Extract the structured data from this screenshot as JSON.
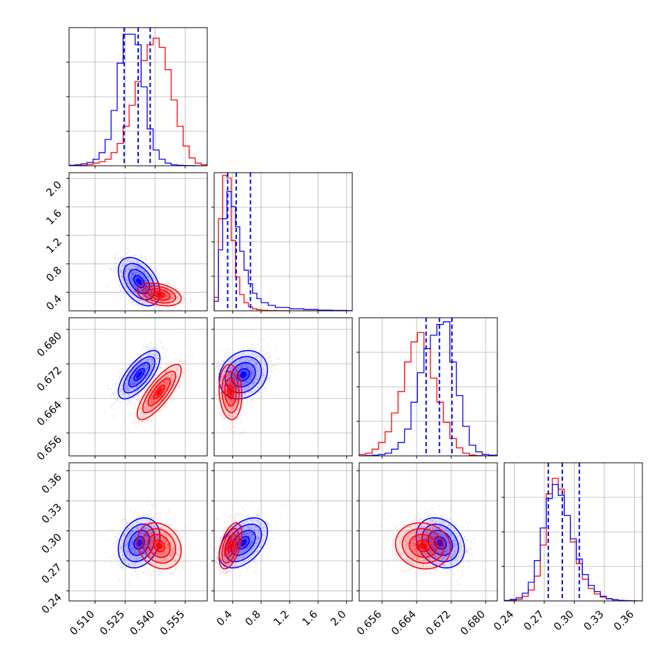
{
  "colors": {
    "sample_a": "#0000ff",
    "sample_b": "#ff0000"
  },
  "chart_data": {
    "type": "scatter",
    "subtype": "corner-plot",
    "grid": true,
    "legend": "none",
    "series_colors": [
      "#0000ff",
      "#ff0000"
    ],
    "parameters": [
      {
        "range": [
          0.497,
          0.566
        ],
        "ticks": [
          0.525,
          0.54,
          0.555,
          0.51
        ],
        "tick_labels": [
          "0.510",
          "0.525",
          "0.540",
          "0.555"
        ],
        "tick_values": [
          0.51,
          0.525,
          0.54,
          0.555
        ]
      },
      {
        "range": [
          0.14,
          2.08
        ],
        "ticks": [
          0.4,
          0.8,
          1.2,
          1.6,
          2.0
        ],
        "tick_labels": [
          "0.4",
          "0.8",
          "1.2",
          "1.6",
          "2.0"
        ],
        "tick_values": [
          0.4,
          0.8,
          1.2,
          1.6,
          2.0
        ]
      },
      {
        "range": [
          0.6507,
          0.6827
        ],
        "tick_labels": [
          "0.656",
          "0.664",
          "0.672",
          "0.680"
        ],
        "tick_values": [
          0.656,
          0.664,
          0.672,
          0.68
        ]
      },
      {
        "range": [
          0.23,
          0.368
        ],
        "tick_labels": [
          "0.24",
          "0.27",
          "0.30",
          "0.33",
          "0.36"
        ],
        "tick_values": [
          0.24,
          0.27,
          0.3,
          0.33,
          0.36
        ]
      }
    ],
    "series": [
      {
        "color": "#0000ff",
        "mean": [
          0.532,
          0.55,
          0.6695,
          0.288
        ],
        "std": [
          0.0052,
          0.17,
          0.0028,
          0.0125
        ],
        "quantiles": [
          [
            0.5245,
            0.5315,
            0.5375
          ],
          [
            0.33,
            0.45,
            0.65
          ],
          [
            0.6662,
            0.6693,
            0.6722
          ],
          [
            0.274,
            0.288,
            0.305
          ]
        ],
        "rho": [
          [
            1,
            -0.45,
            0.7,
            0.25
          ],
          [
            -0.45,
            1,
            0.2,
            0.45
          ],
          [
            0.7,
            0.2,
            1,
            -0.25
          ],
          [
            0.25,
            0.45,
            -0.25,
            1
          ]
        ]
      },
      {
        "color": "#ff0000",
        "mean": [
          0.542,
          0.37,
          0.6655,
          0.285
        ],
        "std": [
          0.0055,
          0.08,
          0.0032,
          0.0115
        ],
        "rho": [
          [
            1,
            -0.35,
            0.8,
            -0.2
          ],
          [
            -0.35,
            1,
            -0.1,
            0.5
          ],
          [
            0.8,
            -0.1,
            1,
            -0.1
          ],
          [
            -0.2,
            0.5,
            -0.1,
            1
          ]
        ]
      }
    ],
    "histograms": {
      "param_0": {
        "bin_edges": [
          0.497,
          0.5,
          0.503,
          0.506,
          0.509,
          0.512,
          0.515,
          0.518,
          0.521,
          0.524,
          0.527,
          0.53,
          0.533,
          0.536,
          0.539,
          0.542,
          0.545,
          0.548,
          0.551,
          0.554,
          0.557,
          0.56,
          0.563,
          0.566
        ],
        "blue": [
          0.004,
          0.008,
          0.015,
          0.025,
          0.05,
          0.1,
          0.2,
          0.42,
          0.78,
          1.0,
          1.0,
          0.92,
          0.6,
          0.28,
          0.12,
          0.05,
          0.02,
          0.008,
          0.004,
          0.002,
          0.001,
          0.0,
          0.0
        ],
        "red": [
          0.0,
          0.002,
          0.004,
          0.01,
          0.02,
          0.03,
          0.05,
          0.1,
          0.17,
          0.3,
          0.46,
          0.64,
          0.8,
          0.92,
          0.97,
          0.9,
          0.73,
          0.5,
          0.3,
          0.15,
          0.06,
          0.02,
          0.008
        ]
      },
      "param_1": {
        "bin_edges": [
          0.14,
          0.2,
          0.26,
          0.32,
          0.38,
          0.44,
          0.5,
          0.56,
          0.62,
          0.68,
          0.74,
          0.8,
          0.9,
          1.0,
          1.2,
          1.4,
          1.6,
          1.8,
          2.0,
          2.08
        ],
        "blue": [
          0.07,
          0.45,
          0.68,
          0.88,
          0.77,
          0.62,
          0.44,
          0.3,
          0.2,
          0.13,
          0.09,
          0.06,
          0.04,
          0.025,
          0.015,
          0.01,
          0.005,
          0.003,
          0.001
        ],
        "red": [
          0.1,
          0.68,
          1.0,
          0.98,
          0.52,
          0.25,
          0.12,
          0.06,
          0.03,
          0.015,
          0.008,
          0.004,
          0.002,
          0.001,
          0.0,
          0.0,
          0.0,
          0.0,
          0.0
        ]
      },
      "param_2": {
        "bin_edges": [
          0.6507,
          0.6522,
          0.6537,
          0.6552,
          0.6567,
          0.6582,
          0.6597,
          0.6612,
          0.6627,
          0.6642,
          0.6657,
          0.6672,
          0.6687,
          0.6702,
          0.6717,
          0.6732,
          0.6747,
          0.6762,
          0.6777,
          0.6792,
          0.6807,
          0.6827
        ],
        "blue": [
          0.0,
          0.002,
          0.005,
          0.01,
          0.02,
          0.05,
          0.1,
          0.2,
          0.4,
          0.62,
          0.8,
          0.9,
          0.98,
          1.0,
          0.7,
          0.45,
          0.22,
          0.08,
          0.03,
          0.01,
          0.005
        ],
        "red": [
          0.01,
          0.02,
          0.05,
          0.1,
          0.18,
          0.32,
          0.48,
          0.7,
          0.85,
          0.92,
          0.8,
          0.58,
          0.4,
          0.25,
          0.13,
          0.06,
          0.02,
          0.006,
          0.002,
          0.0,
          0.0
        ]
      },
      "param_3": {
        "bin_edges": [
          0.23,
          0.236,
          0.242,
          0.248,
          0.254,
          0.26,
          0.266,
          0.272,
          0.278,
          0.284,
          0.29,
          0.296,
          0.302,
          0.308,
          0.314,
          0.32,
          0.326,
          0.332,
          0.338,
          0.344,
          0.35,
          0.356,
          0.362,
          0.368
        ],
        "blue": [
          0.003,
          0.01,
          0.02,
          0.05,
          0.12,
          0.26,
          0.47,
          0.66,
          0.75,
          0.68,
          0.55,
          0.4,
          0.27,
          0.17,
          0.1,
          0.06,
          0.03,
          0.015,
          0.008,
          0.004,
          0.002,
          0.001,
          0.0
        ],
        "red": [
          0.0,
          0.004,
          0.01,
          0.03,
          0.07,
          0.16,
          0.36,
          0.69,
          0.79,
          0.72,
          0.55,
          0.38,
          0.24,
          0.14,
          0.08,
          0.045,
          0.025,
          0.013,
          0.006,
          0.003,
          0.001,
          0.0,
          0.0
        ]
      }
    }
  }
}
